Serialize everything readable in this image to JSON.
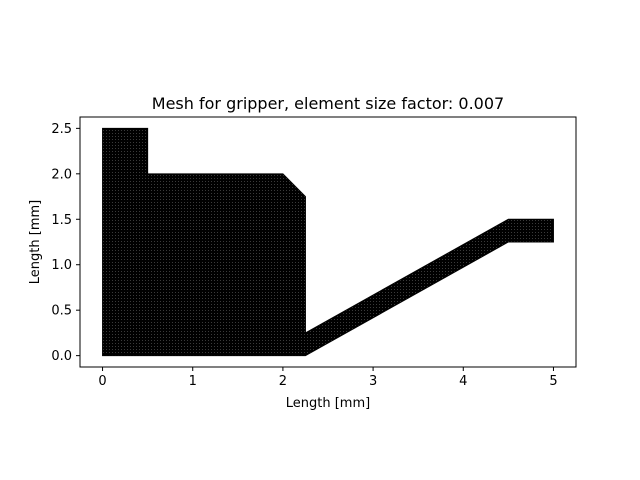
{
  "chart_data": {
    "type": "area",
    "title": "Mesh for gripper, element size factor: 0.007",
    "xlabel": "Length [mm]",
    "ylabel": "Length [mm]",
    "xlim": [
      -0.25,
      5.25
    ],
    "ylim": [
      -0.125,
      2.625
    ],
    "xticks": [
      0,
      1,
      2,
      3,
      4,
      5
    ],
    "xtick_labels": [
      "0",
      "1",
      "2",
      "3",
      "4",
      "5"
    ],
    "yticks": [
      0.0,
      0.5,
      1.0,
      1.5,
      2.0,
      2.5
    ],
    "ytick_labels": [
      "0.0",
      "0.5",
      "1.0",
      "1.5",
      "2.0",
      "2.5"
    ],
    "grid": false,
    "mesh_color": "#000000",
    "series": [
      {
        "values": [
          [
            0,
            0
          ],
          [
            0,
            2.5
          ],
          [
            0.5,
            2.5
          ],
          [
            0.5,
            2.0
          ],
          [
            2.0,
            2.0
          ],
          [
            2.25,
            1.75
          ],
          [
            2.25,
            0.25
          ],
          [
            4.5,
            1.5
          ],
          [
            5.0,
            1.5
          ],
          [
            5.0,
            1.25
          ],
          [
            4.5,
            1.25
          ],
          [
            2.25,
            0.0
          ],
          [
            0,
            0
          ]
        ]
      }
    ]
  }
}
